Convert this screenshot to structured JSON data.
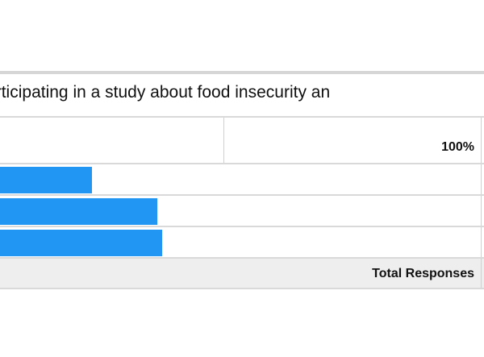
{
  "question": {
    "text": "be in participating in a study about food insecurity an"
  },
  "header": {
    "percent_label": "100%"
  },
  "rows": [
    {
      "fraction": 0.192,
      "color": "#2196f3"
    },
    {
      "fraction": 0.328,
      "color": "#2196f3"
    },
    {
      "fraction": 0.338,
      "color": "#2196f3"
    }
  ],
  "footer": {
    "total_label": "Total Responses"
  }
}
